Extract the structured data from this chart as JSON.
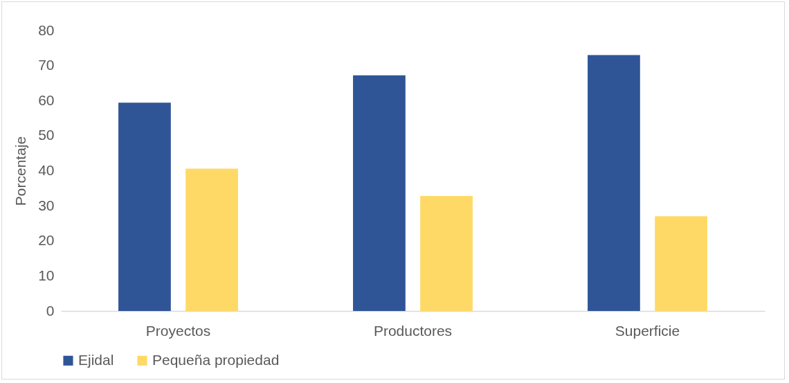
{
  "chart_data": {
    "type": "bar",
    "ylabel": "Porcentaje",
    "categories": [
      "Proyectos",
      "Productores",
      "Superficie"
    ],
    "series": [
      {
        "name": "Ejidal",
        "color": "#2f5597",
        "values": [
          59.4,
          67.2,
          73
        ]
      },
      {
        "name": "Pequeña propiedad",
        "color": "#ffd966",
        "values": [
          40.6,
          32.8,
          27
        ]
      }
    ],
    "ylim": [
      0,
      80
    ],
    "yticks": [
      0,
      10,
      20,
      30,
      40,
      50,
      60,
      70,
      80
    ],
    "grid": false,
    "legend": "bottom"
  }
}
